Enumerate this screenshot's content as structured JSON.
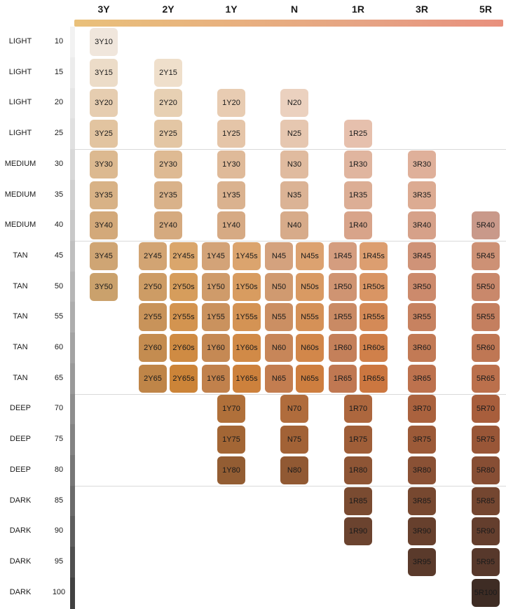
{
  "columns": [
    "3Y",
    "2Y",
    "1Y",
    "N",
    "1R",
    "3R",
    "5R"
  ],
  "undertone_gradient": [
    "#e9c07a",
    "#e8b27e",
    "#e6a484",
    "#e8907d"
  ],
  "rows": [
    {
      "category": "LIGHT",
      "depth": "10"
    },
    {
      "category": "LIGHT",
      "depth": "15"
    },
    {
      "category": "LIGHT",
      "depth": "20"
    },
    {
      "category": "LIGHT",
      "depth": "25"
    },
    {
      "category": "MEDIUM",
      "depth": "30"
    },
    {
      "category": "MEDIUM",
      "depth": "35"
    },
    {
      "category": "MEDIUM",
      "depth": "40"
    },
    {
      "category": "TAN",
      "depth": "45"
    },
    {
      "category": "TAN",
      "depth": "50"
    },
    {
      "category": "TAN",
      "depth": "55"
    },
    {
      "category": "TAN",
      "depth": "60"
    },
    {
      "category": "TAN",
      "depth": "65"
    },
    {
      "category": "DEEP",
      "depth": "70"
    },
    {
      "category": "DEEP",
      "depth": "75"
    },
    {
      "category": "DEEP",
      "depth": "80"
    },
    {
      "category": "DARK",
      "depth": "85"
    },
    {
      "category": "DARK",
      "depth": "90"
    },
    {
      "category": "DARK",
      "depth": "95"
    },
    {
      "category": "DARK",
      "depth": "100"
    }
  ],
  "depth_strip_colors": [
    "#f2f2f2",
    "#ececec",
    "#e6e6e6",
    "#e0e0e0",
    "#d8d8d8",
    "#d0d0d0",
    "#c8c8c8",
    "#bfbfbf",
    "#b6b6b6",
    "#adadad",
    "#a3a3a3",
    "#999999",
    "#8e8e8e",
    "#838383",
    "#777777",
    "#6b6b6b",
    "#5e5e5e",
    "#505050",
    "#414141"
  ],
  "swatches": [
    {
      "label": "3Y10",
      "row": 0,
      "col": "3Y",
      "slot": "center",
      "color": "#f0e6dc",
      "text_color": "#1a1a1a"
    },
    {
      "label": "3Y15",
      "row": 1,
      "col": "3Y",
      "slot": "center",
      "color": "#ecdcc8",
      "text_color": "#1a1a1a"
    },
    {
      "label": "2Y15",
      "row": 1,
      "col": "2Y",
      "slot": "center",
      "color": "#efdfcb",
      "text_color": "#1a1a1a"
    },
    {
      "label": "3Y20",
      "row": 2,
      "col": "3Y",
      "slot": "center",
      "color": "#e6cdb0",
      "text_color": "#1a1a1a"
    },
    {
      "label": "2Y20",
      "row": 2,
      "col": "2Y",
      "slot": "center",
      "color": "#e7d0b3",
      "text_color": "#1a1a1a"
    },
    {
      "label": "1Y20",
      "row": 2,
      "col": "1Y",
      "slot": "center",
      "color": "#e8ccb2",
      "text_color": "#1a1a1a"
    },
    {
      "label": "N20",
      "row": 2,
      "col": "N",
      "slot": "center",
      "color": "#ebd1bf",
      "text_color": "#1a1a1a"
    },
    {
      "label": "3Y25",
      "row": 3,
      "col": "3Y",
      "slot": "center",
      "color": "#e2c4a0",
      "text_color": "#1a1a1a"
    },
    {
      "label": "2Y25",
      "row": 3,
      "col": "2Y",
      "slot": "center",
      "color": "#e3c6a4",
      "text_color": "#1a1a1a"
    },
    {
      "label": "1Y25",
      "row": 3,
      "col": "1Y",
      "slot": "center",
      "color": "#e5c5a8",
      "text_color": "#1a1a1a"
    },
    {
      "label": "N25",
      "row": 3,
      "col": "N",
      "slot": "center",
      "color": "#e6c7b0",
      "text_color": "#1a1a1a"
    },
    {
      "label": "1R25",
      "row": 3,
      "col": "1R",
      "slot": "center",
      "color": "#e6c0ad",
      "text_color": "#1a1a1a"
    },
    {
      "label": "3Y30",
      "row": 4,
      "col": "3Y",
      "slot": "center",
      "color": "#dcb990",
      "text_color": "#1a1a1a"
    },
    {
      "label": "2Y30",
      "row": 4,
      "col": "2Y",
      "slot": "center",
      "color": "#deba93",
      "text_color": "#1a1a1a"
    },
    {
      "label": "1Y30",
      "row": 4,
      "col": "1Y",
      "slot": "center",
      "color": "#dfba99",
      "text_color": "#1a1a1a"
    },
    {
      "label": "N30",
      "row": 4,
      "col": "N",
      "slot": "center",
      "color": "#e0bb9f",
      "text_color": "#1a1a1a"
    },
    {
      "label": "1R30",
      "row": 4,
      "col": "1R",
      "slot": "center",
      "color": "#e0b59f",
      "text_color": "#1a1a1a"
    },
    {
      "label": "3R30",
      "row": 4,
      "col": "3R",
      "slot": "center",
      "color": "#dfb09a",
      "text_color": "#1a1a1a"
    },
    {
      "label": "3Y35",
      "row": 5,
      "col": "3Y",
      "slot": "center",
      "color": "#d8b286",
      "text_color": "#1a1a1a"
    },
    {
      "label": "2Y35",
      "row": 5,
      "col": "2Y",
      "slot": "center",
      "color": "#d9b28a",
      "text_color": "#1a1a1a"
    },
    {
      "label": "1Y35",
      "row": 5,
      "col": "1Y",
      "slot": "center",
      "color": "#dab28f",
      "text_color": "#1a1a1a"
    },
    {
      "label": "N35",
      "row": 5,
      "col": "N",
      "slot": "center",
      "color": "#dbb395",
      "text_color": "#1a1a1a"
    },
    {
      "label": "1R35",
      "row": 5,
      "col": "1R",
      "slot": "center",
      "color": "#dcae95",
      "text_color": "#1a1a1a"
    },
    {
      "label": "3R35",
      "row": 5,
      "col": "3R",
      "slot": "center",
      "color": "#dcab92",
      "text_color": "#1a1a1a"
    },
    {
      "label": "3Y40",
      "row": 6,
      "col": "3Y",
      "slot": "center",
      "color": "#d3a97a",
      "text_color": "#1a1a1a"
    },
    {
      "label": "2Y40",
      "row": 6,
      "col": "2Y",
      "slot": "center",
      "color": "#d5aa7f",
      "text_color": "#1a1a1a"
    },
    {
      "label": "1Y40",
      "row": 6,
      "col": "1Y",
      "slot": "center",
      "color": "#d6aa84",
      "text_color": "#1a1a1a"
    },
    {
      "label": "N40",
      "row": 6,
      "col": "N",
      "slot": "center",
      "color": "#d7ab8a",
      "text_color": "#1a1a1a"
    },
    {
      "label": "1R40",
      "row": 6,
      "col": "1R",
      "slot": "center",
      "color": "#d8a48a",
      "text_color": "#1a1a1a"
    },
    {
      "label": "3R40",
      "row": 6,
      "col": "3R",
      "slot": "center",
      "color": "#d6a189",
      "text_color": "#1a1a1a"
    },
    {
      "label": "5R40",
      "row": 6,
      "col": "5R",
      "slot": "center",
      "color": "#c9998a",
      "text_color": "#1a1a1a"
    },
    {
      "label": "3Y45",
      "row": 7,
      "col": "3Y",
      "slot": "center",
      "color": "#cfa574",
      "text_color": "#1a1a1a"
    },
    {
      "label": "2Y45",
      "row": 7,
      "col": "2Y",
      "slot": "left",
      "color": "#d2a473",
      "text_color": "#1a1a1a"
    },
    {
      "label": "2Y45s",
      "row": 7,
      "col": "2Y",
      "slot": "right",
      "color": "#daa66c",
      "text_color": "#1a1a1a"
    },
    {
      "label": "1Y45",
      "row": 7,
      "col": "1Y",
      "slot": "left",
      "color": "#d3a378",
      "text_color": "#1a1a1a"
    },
    {
      "label": "1Y45s",
      "row": 7,
      "col": "1Y",
      "slot": "right",
      "color": "#dba46e",
      "text_color": "#1a1a1a"
    },
    {
      "label": "N45",
      "row": 7,
      "col": "N",
      "slot": "left",
      "color": "#d4a27e",
      "text_color": "#1a1a1a"
    },
    {
      "label": "N45s",
      "row": 7,
      "col": "N",
      "slot": "right",
      "color": "#dca270",
      "text_color": "#1a1a1a"
    },
    {
      "label": "1R45",
      "row": 7,
      "col": "1R",
      "slot": "left",
      "color": "#d49d7f",
      "text_color": "#1a1a1a"
    },
    {
      "label": "1R45s",
      "row": 7,
      "col": "1R",
      "slot": "right",
      "color": "#dc9e70",
      "text_color": "#1a1a1a"
    },
    {
      "label": "3R45",
      "row": 7,
      "col": "3R",
      "slot": "center",
      "color": "#cf9378",
      "text_color": "#1a1a1a"
    },
    {
      "label": "5R45",
      "row": 7,
      "col": "5R",
      "slot": "center",
      "color": "#cd9175",
      "text_color": "#1a1a1a"
    },
    {
      "label": "3Y50",
      "row": 8,
      "col": "3Y",
      "slot": "center",
      "color": "#caa16c",
      "text_color": "#1a1a1a"
    },
    {
      "label": "2Y50",
      "row": 8,
      "col": "2Y",
      "slot": "left",
      "color": "#cd9c65",
      "text_color": "#1a1a1a"
    },
    {
      "label": "2Y50s",
      "row": 8,
      "col": "2Y",
      "slot": "right",
      "color": "#d69d5c",
      "text_color": "#1a1a1a"
    },
    {
      "label": "1Y50",
      "row": 8,
      "col": "1Y",
      "slot": "left",
      "color": "#cf9b6a",
      "text_color": "#1a1a1a"
    },
    {
      "label": "1Y50s",
      "row": 8,
      "col": "1Y",
      "slot": "right",
      "color": "#d89c60",
      "text_color": "#1a1a1a"
    },
    {
      "label": "N50",
      "row": 8,
      "col": "N",
      "slot": "left",
      "color": "#d09a70",
      "text_color": "#1a1a1a"
    },
    {
      "label": "N50s",
      "row": 8,
      "col": "N",
      "slot": "right",
      "color": "#d99a63",
      "text_color": "#1a1a1a"
    },
    {
      "label": "1R50",
      "row": 8,
      "col": "1R",
      "slot": "left",
      "color": "#cf9472",
      "text_color": "#1a1a1a"
    },
    {
      "label": "1R50s",
      "row": 8,
      "col": "1R",
      "slot": "right",
      "color": "#d99564",
      "text_color": "#1a1a1a"
    },
    {
      "label": "3R50",
      "row": 8,
      "col": "3R",
      "slot": "center",
      "color": "#cc8a6c",
      "text_color": "#1a1a1a"
    },
    {
      "label": "5R50",
      "row": 8,
      "col": "5R",
      "slot": "center",
      "color": "#c9886b",
      "text_color": "#1a1a1a"
    },
    {
      "label": "2Y55",
      "row": 9,
      "col": "2Y",
      "slot": "left",
      "color": "#c8935a",
      "text_color": "#1a1a1a"
    },
    {
      "label": "2Y55s",
      "row": 9,
      "col": "2Y",
      "slot": "right",
      "color": "#d39450",
      "text_color": "#1a1a1a"
    },
    {
      "label": "1Y55",
      "row": 9,
      "col": "1Y",
      "slot": "left",
      "color": "#ca925e",
      "text_color": "#1a1a1a"
    },
    {
      "label": "1Y55s",
      "row": 9,
      "col": "1Y",
      "slot": "right",
      "color": "#d49354",
      "text_color": "#1a1a1a"
    },
    {
      "label": "N55",
      "row": 9,
      "col": "N",
      "slot": "left",
      "color": "#cb8f63",
      "text_color": "#1a1a1a"
    },
    {
      "label": "N55s",
      "row": 9,
      "col": "N",
      "slot": "right",
      "color": "#d59157",
      "text_color": "#1a1a1a"
    },
    {
      "label": "1R55",
      "row": 9,
      "col": "1R",
      "slot": "left",
      "color": "#c98a64",
      "text_color": "#1a1a1a"
    },
    {
      "label": "1R55s",
      "row": 9,
      "col": "1R",
      "slot": "right",
      "color": "#d48a57",
      "text_color": "#1a1a1a"
    },
    {
      "label": "3R55",
      "row": 9,
      "col": "3R",
      "slot": "center",
      "color": "#c78260",
      "text_color": "#1a1a1a"
    },
    {
      "label": "5R55",
      "row": 9,
      "col": "5R",
      "slot": "center",
      "color": "#c47f5f",
      "text_color": "#1a1a1a"
    },
    {
      "label": "2Y60",
      "row": 10,
      "col": "2Y",
      "slot": "left",
      "color": "#c48c50",
      "text_color": "#1a1a1a"
    },
    {
      "label": "2Y60s",
      "row": 10,
      "col": "2Y",
      "slot": "right",
      "color": "#cf8b43",
      "text_color": "#1a1a1a"
    },
    {
      "label": "1Y60",
      "row": 10,
      "col": "1Y",
      "slot": "left",
      "color": "#c58954",
      "text_color": "#1a1a1a"
    },
    {
      "label": "1Y60s",
      "row": 10,
      "col": "1Y",
      "slot": "right",
      "color": "#d18a47",
      "text_color": "#1a1a1a"
    },
    {
      "label": "N60",
      "row": 10,
      "col": "N",
      "slot": "left",
      "color": "#c78659",
      "text_color": "#1a1a1a"
    },
    {
      "label": "N60s",
      "row": 10,
      "col": "N",
      "slot": "right",
      "color": "#d2874a",
      "text_color": "#1a1a1a"
    },
    {
      "label": "1R60",
      "row": 10,
      "col": "1R",
      "slot": "left",
      "color": "#c4805a",
      "text_color": "#1a1a1a"
    },
    {
      "label": "1R60s",
      "row": 10,
      "col": "1R",
      "slot": "right",
      "color": "#d0804a",
      "text_color": "#1a1a1a"
    },
    {
      "label": "3R60",
      "row": 10,
      "col": "3R",
      "slot": "center",
      "color": "#c27a55",
      "text_color": "#1a1a1a"
    },
    {
      "label": "5R60",
      "row": 10,
      "col": "5R",
      "slot": "center",
      "color": "#bf7754",
      "text_color": "#1a1a1a"
    },
    {
      "label": "2Y65",
      "row": 11,
      "col": "2Y",
      "slot": "left",
      "color": "#bf8548",
      "text_color": "#1a1a1a"
    },
    {
      "label": "2Y65s",
      "row": 11,
      "col": "2Y",
      "slot": "right",
      "color": "#cc8438",
      "text_color": "#1a1a1a"
    },
    {
      "label": "1Y65",
      "row": 11,
      "col": "1Y",
      "slot": "left",
      "color": "#c1814c",
      "text_color": "#1a1a1a"
    },
    {
      "label": "1Y65s",
      "row": 11,
      "col": "1Y",
      "slot": "right",
      "color": "#cd813c",
      "text_color": "#1a1a1a"
    },
    {
      "label": "N65",
      "row": 11,
      "col": "N",
      "slot": "left",
      "color": "#c37d50",
      "text_color": "#1a1a1a"
    },
    {
      "label": "N65s",
      "row": 11,
      "col": "N",
      "slot": "right",
      "color": "#ce7e3f",
      "text_color": "#1a1a1a"
    },
    {
      "label": "1R65",
      "row": 11,
      "col": "1R",
      "slot": "left",
      "color": "#c07852",
      "text_color": "#1a1a1a"
    },
    {
      "label": "1R65s",
      "row": 11,
      "col": "1R",
      "slot": "right",
      "color": "#cc7740",
      "text_color": "#1a1a1a"
    },
    {
      "label": "3R65",
      "row": 11,
      "col": "3R",
      "slot": "center",
      "color": "#bd724e",
      "text_color": "#1a1a1a"
    },
    {
      "label": "5R65",
      "row": 11,
      "col": "5R",
      "slot": "center",
      "color": "#bb704c",
      "text_color": "#1a1a1a"
    },
    {
      "label": "1Y70",
      "row": 12,
      "col": "1Y",
      "slot": "center",
      "color": "#b0703a",
      "text_color": "#1a1a1a"
    },
    {
      "label": "N70",
      "row": 12,
      "col": "N",
      "slot": "center",
      "color": "#b06c3c",
      "text_color": "#1a1a1a"
    },
    {
      "label": "1R70",
      "row": 12,
      "col": "1R",
      "slot": "center",
      "color": "#ad673e",
      "text_color": "#1a1a1a"
    },
    {
      "label": "3R70",
      "row": 12,
      "col": "3R",
      "slot": "center",
      "color": "#aa623e",
      "text_color": "#1a1a1a"
    },
    {
      "label": "5R70",
      "row": 12,
      "col": "5R",
      "slot": "center",
      "color": "#a85e3c",
      "text_color": "#1a1a1a"
    },
    {
      "label": "1Y75",
      "row": 13,
      "col": "1Y",
      "slot": "center",
      "color": "#a36635",
      "text_color": "#1a1a1a"
    },
    {
      "label": "N75",
      "row": 13,
      "col": "N",
      "slot": "center",
      "color": "#a26236",
      "text_color": "#1a1a1a"
    },
    {
      "label": "1R75",
      "row": 13,
      "col": "1R",
      "slot": "center",
      "color": "#9f5e38",
      "text_color": "#1a1a1a"
    },
    {
      "label": "3R75",
      "row": 13,
      "col": "3R",
      "slot": "center",
      "color": "#9c5a38",
      "text_color": "#1a1a1a"
    },
    {
      "label": "5R75",
      "row": 13,
      "col": "5R",
      "slot": "center",
      "color": "#995637",
      "text_color": "#1a1a1a"
    },
    {
      "label": "1Y80",
      "row": 14,
      "col": "1Y",
      "slot": "center",
      "color": "#935d33",
      "text_color": "#1a1a1a"
    },
    {
      "label": "N80",
      "row": 14,
      "col": "N",
      "slot": "center",
      "color": "#915933",
      "text_color": "#1a1a1a"
    },
    {
      "label": "1R80",
      "row": 14,
      "col": "1R",
      "slot": "center",
      "color": "#8e5535",
      "text_color": "#1a1a1a"
    },
    {
      "label": "3R80",
      "row": 14,
      "col": "3R",
      "slot": "center",
      "color": "#8a5135",
      "text_color": "#1a1a1a"
    },
    {
      "label": "5R80",
      "row": 14,
      "col": "5R",
      "slot": "center",
      "color": "#874e34",
      "text_color": "#1a1a1a"
    },
    {
      "label": "1R85",
      "row": 15,
      "col": "1R",
      "slot": "center",
      "color": "#7a4b31",
      "text_color": "#1a1a1a"
    },
    {
      "label": "3R85",
      "row": 15,
      "col": "3R",
      "slot": "center",
      "color": "#774830",
      "text_color": "#1a1a1a"
    },
    {
      "label": "5R85",
      "row": 15,
      "col": "5R",
      "slot": "center",
      "color": "#744630",
      "text_color": "#1a1a1a"
    },
    {
      "label": "1R90",
      "row": 16,
      "col": "1R",
      "slot": "center",
      "color": "#6b432f",
      "text_color": "#1a1a1a"
    },
    {
      "label": "3R90",
      "row": 16,
      "col": "3R",
      "slot": "center",
      "color": "#67402d",
      "text_color": "#1a1a1a"
    },
    {
      "label": "5R90",
      "row": 16,
      "col": "5R",
      "slot": "center",
      "color": "#643e2d",
      "text_color": "#1a1a1a"
    },
    {
      "label": "3R95",
      "row": 17,
      "col": "3R",
      "slot": "center",
      "color": "#5a3a2b",
      "text_color": "#1a1a1a"
    },
    {
      "label": "5R95",
      "row": 17,
      "col": "5R",
      "slot": "center",
      "color": "#57382b",
      "text_color": "#1a1a1a"
    },
    {
      "label": "5R100",
      "row": 18,
      "col": "5R",
      "slot": "center",
      "color": "#3e2c24",
      "text_color": "#1a1a1a"
    }
  ]
}
